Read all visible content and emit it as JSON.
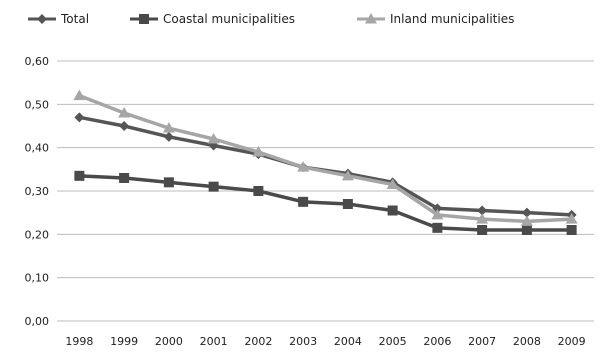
{
  "chart_data": {
    "type": "line",
    "title": "",
    "xlabel": "",
    "ylabel": "",
    "ylim": [
      0,
      0.6
    ],
    "ytick_step": 0.1,
    "ytick_labels": [
      "0,00",
      "0,10",
      "0,20",
      "0,30",
      "0,40",
      "0,50",
      "0,60"
    ],
    "grid": "horizontal",
    "legend_position": "top",
    "x": [
      "1998",
      "1999",
      "2000",
      "2001",
      "2002",
      "2003",
      "2004",
      "2005",
      "2006",
      "2007",
      "2008",
      "2009"
    ],
    "series": [
      {
        "name": "Total",
        "marker": "diamond",
        "color": "#555555",
        "values": [
          0.47,
          0.45,
          0.425,
          0.405,
          0.385,
          0.355,
          0.34,
          0.32,
          0.26,
          0.255,
          0.25,
          0.245
        ]
      },
      {
        "name": "Coastal municipalities",
        "marker": "square",
        "color": "#4a4a4a",
        "values": [
          0.335,
          0.33,
          0.32,
          0.31,
          0.3,
          0.275,
          0.27,
          0.255,
          0.215,
          0.21,
          0.21,
          0.21
        ]
      },
      {
        "name": "Inland municipalities",
        "marker": "triangle",
        "color": "#a6a6a6",
        "values": [
          0.52,
          0.48,
          0.445,
          0.42,
          0.39,
          0.355,
          0.335,
          0.315,
          0.245,
          0.235,
          0.23,
          0.235
        ]
      }
    ]
  }
}
